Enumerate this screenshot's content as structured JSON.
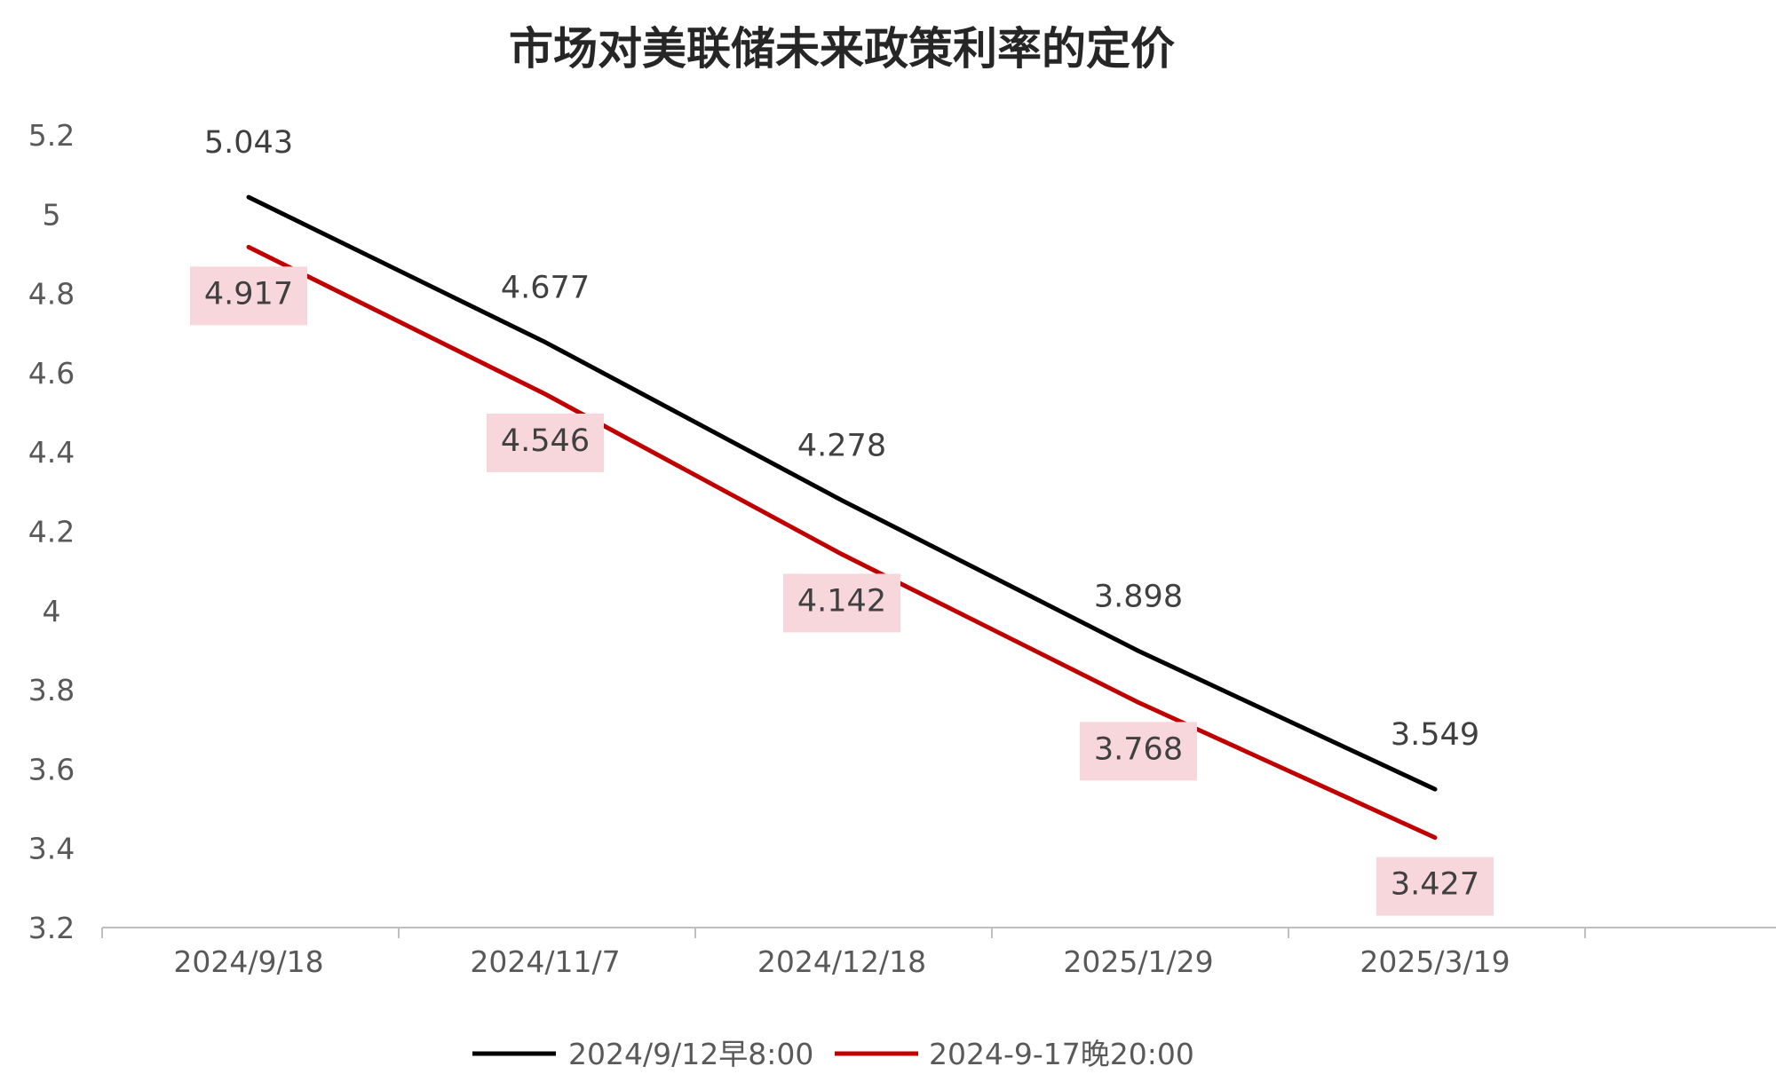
{
  "chart_data": {
    "type": "line",
    "title": "市场对美联储未来政策利率的定价",
    "xlabel": "",
    "ylabel": "",
    "categories": [
      "2024/9/18",
      "2024/11/7",
      "2024/12/18",
      "2025/1/29",
      "2025/3/19"
    ],
    "ylim": [
      3.2,
      5.2
    ],
    "yticks": [
      "5.2",
      "5",
      "4.8",
      "4.6",
      "4.4",
      "4.2",
      "4",
      "3.8",
      "3.6",
      "3.4",
      "3.2"
    ],
    "grid": false,
    "legend_position": "bottom",
    "series": [
      {
        "name": "2024/9/12早8:00",
        "color": "#000000",
        "values": [
          5.043,
          4.677,
          4.278,
          3.898,
          3.549
        ],
        "labels": [
          "5.043",
          "4.677",
          "4.278",
          "3.898",
          "3.549"
        ],
        "label_placement": "above",
        "label_background": ""
      },
      {
        "name": "2024-9-17晚20:00",
        "color": "#c00000",
        "values": [
          4.917,
          4.546,
          4.142,
          3.768,
          3.427
        ],
        "labels": [
          "4.917",
          "4.546",
          "4.142",
          "3.768",
          "3.427"
        ],
        "label_placement": "below",
        "label_background": "#f8d7dc"
      }
    ]
  }
}
